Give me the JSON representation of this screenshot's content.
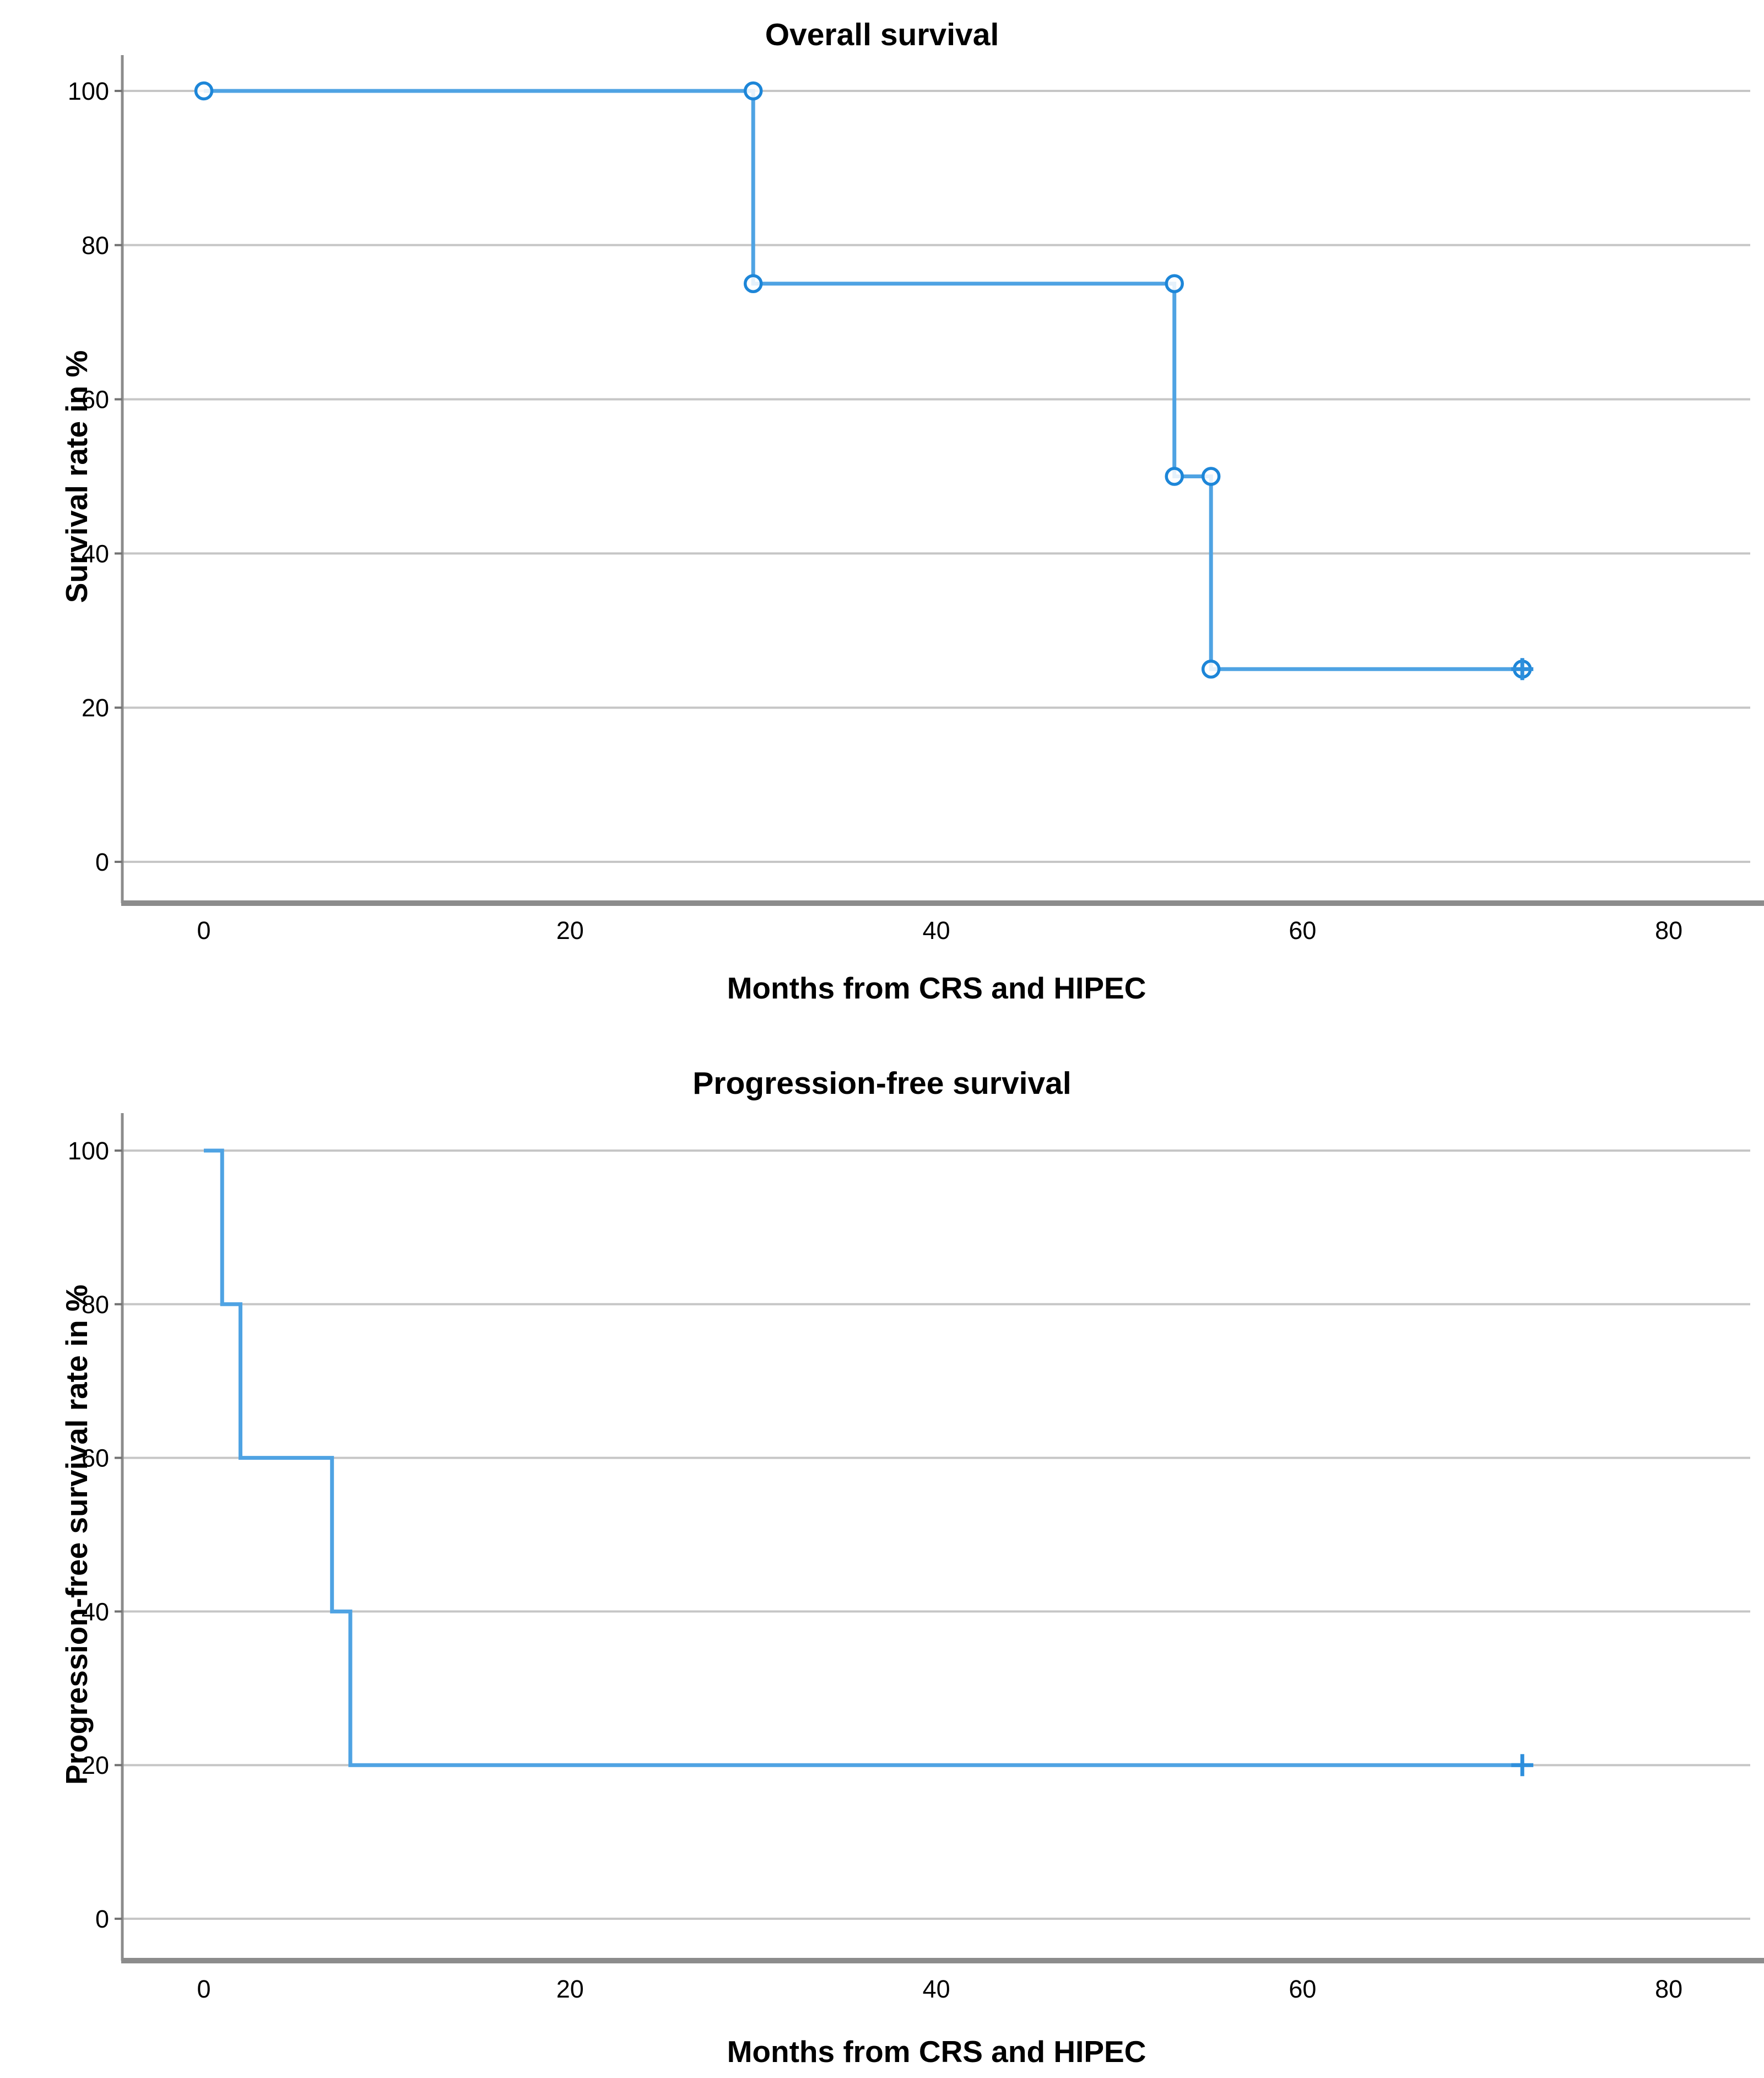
{
  "figure": {
    "background": "#ffffff",
    "description_visible_text_only": true
  },
  "colors": {
    "curve": "#4FA3E3",
    "curve_dark": "#2E8FDC",
    "marker_stroke": "#1D86D8",
    "marker_fill": "#FFFFFF",
    "gridline": "#C6C6C6",
    "axis_line": "#8C8C8C",
    "tick": "#737373",
    "text": "#000000"
  },
  "chart_data": [
    {
      "type": "line",
      "subtype": "kaplan-meier-step",
      "title": "Overall survival",
      "xlabel": "Months from CRS and HIPEC",
      "ylabel": "Survival rate in %",
      "x_ticks": [
        0,
        20,
        40,
        60,
        80
      ],
      "y_ticks": [
        100,
        80,
        60,
        40,
        20,
        0
      ],
      "xlim": [
        -4.5,
        84.5
      ],
      "ylim": [
        0,
        100
      ],
      "grid": "horizontal",
      "legend": "none",
      "series": [
        {
          "name": "Overall survival",
          "steps": [
            [
              0,
              100
            ],
            [
              30,
              100
            ],
            [
              30,
              75
            ],
            [
              53,
              75
            ],
            [
              53,
              50
            ],
            [
              55,
              50
            ],
            [
              55,
              25
            ],
            [
              72,
              25
            ]
          ],
          "event_times_months": [
            30,
            53,
            55
          ],
          "survival_after_event_pct": [
            75,
            50,
            25
          ],
          "censored_points": [
            [
              72,
              25
            ]
          ],
          "point_marker": "open-circle",
          "censor_marker": "plus"
        }
      ]
    },
    {
      "type": "line",
      "subtype": "kaplan-meier-step",
      "title": "Progression-free survival",
      "xlabel": "Months from CRS and HIPEC",
      "ylabel": "Progression-free survival rate in %",
      "x_ticks": [
        0,
        20,
        40,
        60,
        80
      ],
      "y_ticks": [
        100,
        80,
        60,
        40,
        20,
        0
      ],
      "xlim": [
        -4.5,
        84.5
      ],
      "ylim": [
        0,
        100
      ],
      "grid": "horizontal",
      "legend": "none",
      "series": [
        {
          "name": "Progression-free survival",
          "steps": [
            [
              0,
              100
            ],
            [
              1,
              100
            ],
            [
              1,
              80
            ],
            [
              2,
              80
            ],
            [
              2,
              60
            ],
            [
              7,
              60
            ],
            [
              7,
              40
            ],
            [
              8,
              40
            ],
            [
              8,
              20
            ],
            [
              72,
              20
            ]
          ],
          "event_times_months": [
            1,
            2,
            7,
            8
          ],
          "survival_after_event_pct": [
            80,
            60,
            40,
            20
          ],
          "censored_points": [
            [
              72,
              20
            ]
          ],
          "point_marker": "none",
          "censor_marker": "plus"
        }
      ]
    }
  ]
}
